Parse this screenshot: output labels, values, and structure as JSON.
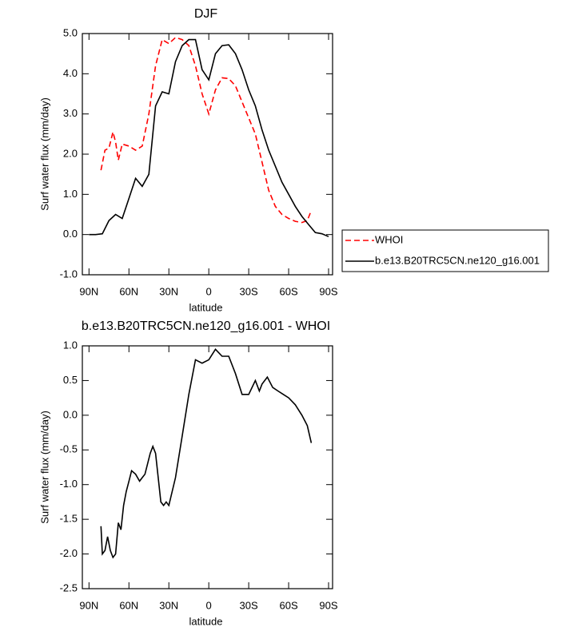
{
  "chart_data": [
    {
      "type": "line",
      "title": "DJF",
      "xlabel": "latitude",
      "ylabel": "Surf water flux (mm/day)",
      "xlim": [
        95,
        -93
      ],
      "ylim": [
        -1,
        5
      ],
      "xticks": [
        {
          "value": 90,
          "label": "90N"
        },
        {
          "value": 60,
          "label": "60N"
        },
        {
          "value": 30,
          "label": "30N"
        },
        0,
        {
          "value": -30,
          "label": "30S"
        },
        {
          "value": -60,
          "label": "60S"
        },
        {
          "value": -90,
          "label": "90S"
        }
      ],
      "yticks": [
        {
          "value": 5,
          "label": "5.0"
        },
        {
          "value": 4,
          "label": "4.0"
        },
        {
          "value": 3,
          "label": "3.0"
        },
        {
          "value": 2,
          "label": "2.0"
        },
        {
          "value": 1,
          "label": "1.0"
        },
        {
          "value": 0,
          "label": "0.0"
        },
        {
          "value": -1,
          "label": "-1.0"
        }
      ],
      "legend": "right",
      "series": [
        {
          "name": "WHOI",
          "color": "#ff0000",
          "line_style": "dashed",
          "x": [
            81,
            78,
            75,
            72,
            70,
            68,
            65,
            60,
            55,
            50,
            45,
            40,
            35,
            30,
            25,
            20,
            15,
            10,
            5,
            0,
            -5,
            -10,
            -15,
            -20,
            -25,
            -30,
            -35,
            -40,
            -45,
            -50,
            -55,
            -60,
            -65,
            -70,
            -74,
            -77
          ],
          "values": [
            1.6,
            2.1,
            2.15,
            2.55,
            2.3,
            1.85,
            2.25,
            2.2,
            2.1,
            2.2,
            3.0,
            4.2,
            4.85,
            4.75,
            4.9,
            4.85,
            4.7,
            4.2,
            3.5,
            3.0,
            3.6,
            3.9,
            3.88,
            3.7,
            3.3,
            2.9,
            2.5,
            1.8,
            1.1,
            0.7,
            0.5,
            0.4,
            0.33,
            0.3,
            0.35,
            0.6
          ]
        },
        {
          "name": "b.e13.B20TRC5CN.ne120_g16.001",
          "color": "#000000",
          "line_style": "solid",
          "x": [
            90,
            85,
            80,
            75,
            70,
            65,
            60,
            55,
            50,
            45,
            40,
            35,
            30,
            25,
            20,
            15,
            10,
            5,
            0,
            -5,
            -10,
            -15,
            -20,
            -25,
            -30,
            -35,
            -40,
            -45,
            -50,
            -55,
            -60,
            -65,
            -70,
            -75,
            -80,
            -85,
            -90
          ],
          "values": [
            0,
            0,
            0.02,
            0.35,
            0.5,
            0.4,
            0.9,
            1.4,
            1.2,
            1.5,
            3.2,
            3.55,
            3.5,
            4.3,
            4.7,
            4.85,
            4.85,
            4.1,
            3.85,
            4.5,
            4.7,
            4.72,
            4.5,
            4.1,
            3.6,
            3.2,
            2.6,
            2.1,
            1.7,
            1.3,
            1.0,
            0.7,
            0.45,
            0.25,
            0.05,
            0.02,
            -0.05
          ]
        }
      ]
    },
    {
      "type": "line",
      "title": "b.e13.B20TRC5CN.ne120_g16.001 - WHOI",
      "xlabel": "latitude",
      "ylabel": "Surf water flux (mm/day)",
      "xlim": [
        95,
        -93
      ],
      "ylim": [
        -2.5,
        1
      ],
      "xticks": [
        {
          "value": 90,
          "label": "90N"
        },
        {
          "value": 60,
          "label": "60N"
        },
        {
          "value": 30,
          "label": "30N"
        },
        0,
        {
          "value": -30,
          "label": "30S"
        },
        {
          "value": -60,
          "label": "60S"
        },
        {
          "value": -90,
          "label": "90S"
        }
      ],
      "yticks": [
        {
          "value": 1,
          "label": "1.0"
        },
        {
          "value": 0.5,
          "label": "0.5"
        },
        {
          "value": 0,
          "label": "0.0"
        },
        {
          "value": -0.5,
          "label": "-0.5"
        },
        {
          "value": -1,
          "label": "-1.0"
        },
        {
          "value": -1.5,
          "label": "-1.5"
        },
        {
          "value": -2,
          "label": "-2.0"
        },
        {
          "value": -2.5,
          "label": "-2.5"
        }
      ],
      "color": "#000000",
      "x": [
        81,
        80,
        78,
        76,
        74,
        72,
        70,
        68,
        66,
        64,
        62,
        60,
        58,
        55,
        52,
        50,
        48,
        46,
        44,
        42,
        40,
        38,
        36,
        34,
        32,
        30,
        25,
        20,
        15,
        10,
        5,
        0,
        -5,
        -10,
        -15,
        -20,
        -25,
        -30,
        -35,
        -38,
        -40,
        -44,
        -48,
        -52,
        -56,
        -60,
        -65,
        -70,
        -74,
        -77
      ],
      "values": [
        -1.6,
        -2.0,
        -1.95,
        -1.75,
        -1.95,
        -2.05,
        -2.0,
        -1.55,
        -1.65,
        -1.3,
        -1.1,
        -0.95,
        -0.8,
        -0.85,
        -0.95,
        -0.9,
        -0.85,
        -0.7,
        -0.55,
        -0.45,
        -0.55,
        -0.9,
        -1.25,
        -1.3,
        -1.25,
        -1.3,
        -0.9,
        -0.3,
        0.3,
        0.8,
        0.75,
        0.8,
        0.95,
        0.85,
        0.85,
        0.6,
        0.3,
        0.3,
        0.5,
        0.35,
        0.45,
        0.55,
        0.4,
        0.35,
        0.3,
        0.25,
        0.15,
        0.0,
        -0.15,
        -0.4
      ]
    }
  ]
}
